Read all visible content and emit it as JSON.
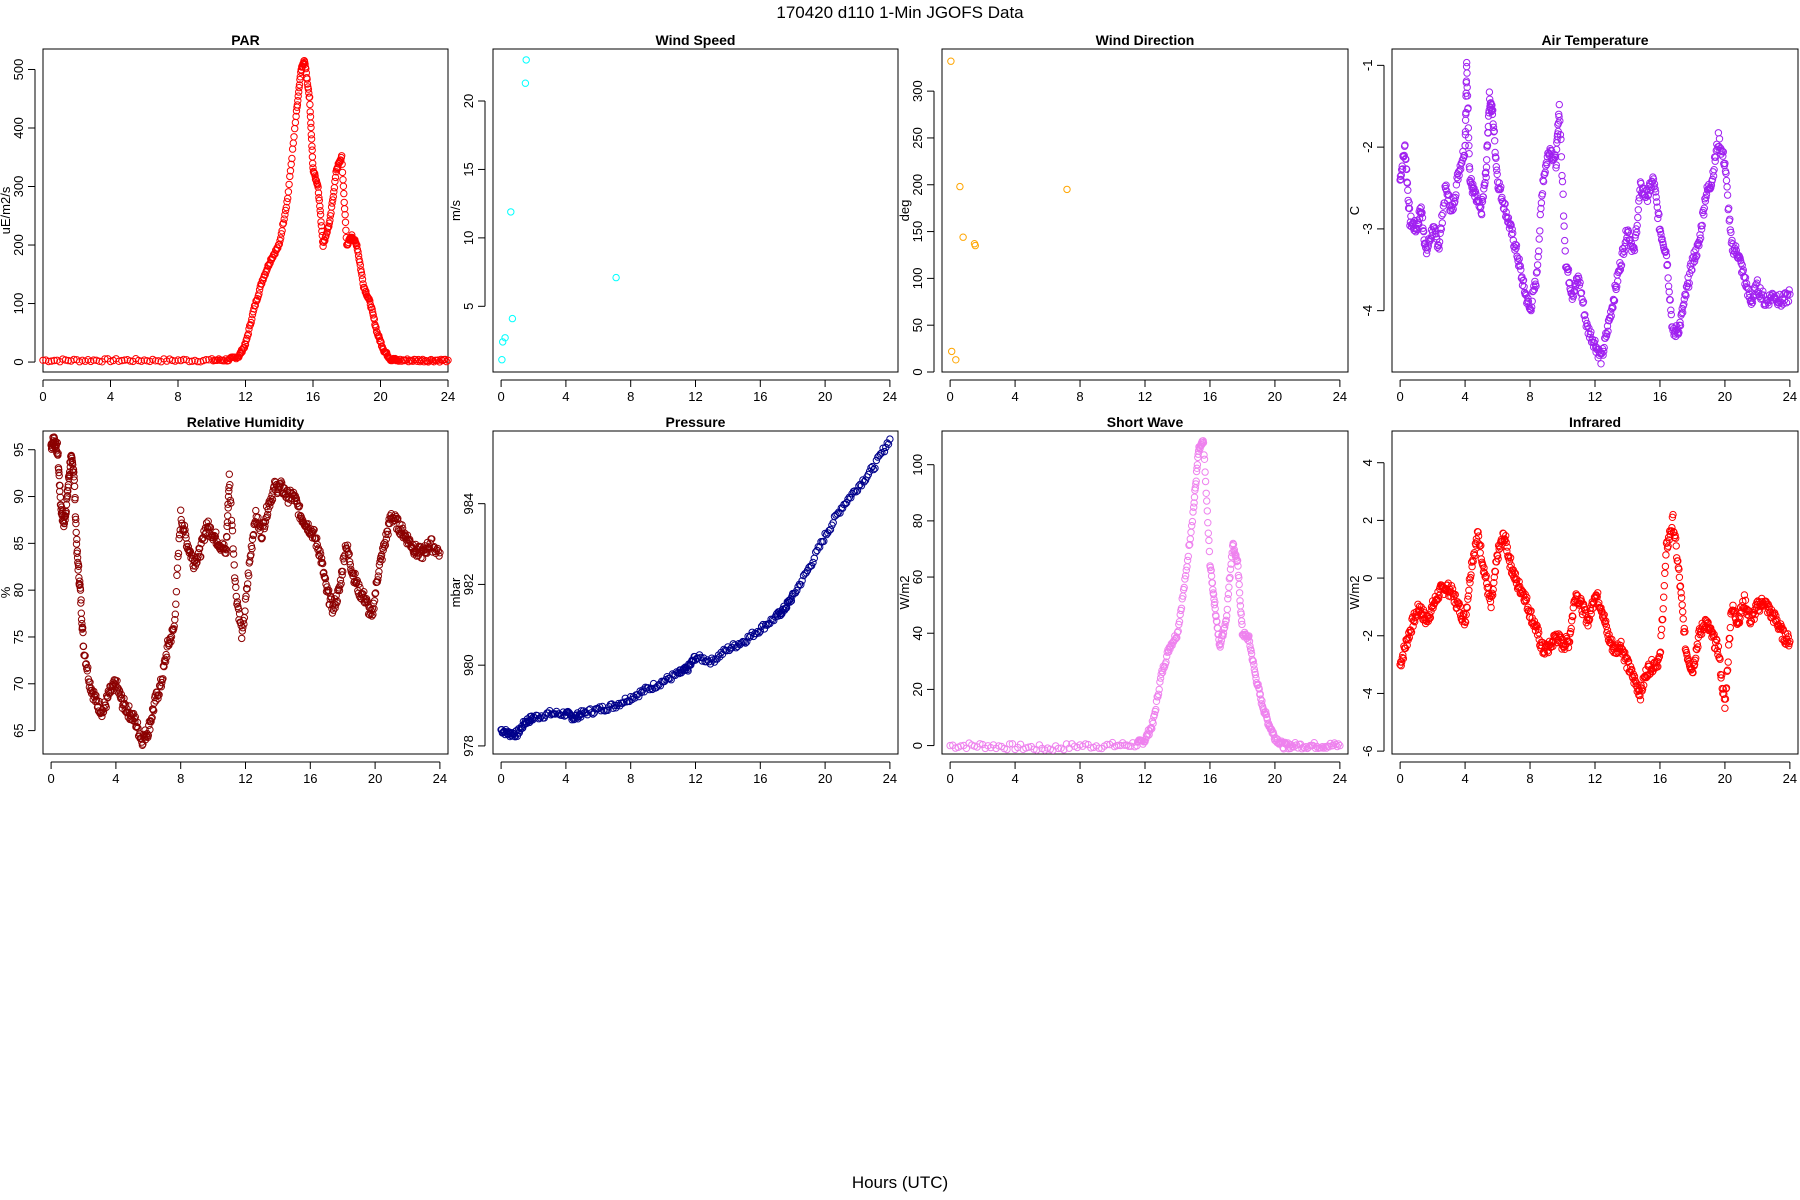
{
  "figure": {
    "title": "170420   d110   1-Min  JGOFS Data",
    "xlabel": "Hours (UTC)"
  },
  "chart_data": [
    {
      "type": "scatter",
      "title": "PAR",
      "ylabel": "uE/m2/s",
      "color": "#ff0000",
      "xlim": [
        0,
        24
      ],
      "ylim": [
        -17,
        535
      ],
      "xticks": [
        0,
        4,
        8,
        12,
        16,
        20,
        24
      ],
      "yticks": [
        0,
        100,
        200,
        300,
        400,
        500
      ],
      "x": [
        0,
        2,
        4,
        6,
        8,
        10,
        11,
        11.6,
        12,
        12.5,
        13,
        13.5,
        14,
        14.5,
        15,
        15.3,
        15.5,
        15.8,
        16,
        16.3,
        16.6,
        17,
        17.4,
        17.7,
        18,
        18.3,
        18.6,
        19,
        19.4,
        19.8,
        20.2,
        20.6,
        21,
        22,
        23,
        24
      ],
      "y": [
        3,
        3,
        3,
        3,
        3,
        3,
        4,
        10,
        30,
        90,
        140,
        175,
        200,
        280,
        420,
        500,
        515,
        450,
        330,
        300,
        200,
        240,
        330,
        350,
        200,
        215,
        200,
        130,
        100,
        50,
        20,
        5,
        3,
        3,
        3,
        3
      ]
    },
    {
      "type": "scatter",
      "title": "Wind Speed",
      "ylabel": "m/s",
      "color": "#00ffff",
      "xlim": [
        -0.5,
        24.5
      ],
      "ylim": [
        0.2,
        23.8
      ],
      "xticks": [
        0,
        4,
        8,
        12,
        16,
        20,
        24
      ],
      "yticks": [
        5,
        10,
        15,
        20
      ],
      "x": [
        0.05,
        0.1,
        0.25,
        0.6,
        0.7,
        1.5,
        1.55,
        7.1
      ],
      "y": [
        1.1,
        2.4,
        2.7,
        11.9,
        4.1,
        21.3,
        23.0,
        7.1
      ]
    },
    {
      "type": "scatter",
      "title": "Wind Direction",
      "ylabel": "deg",
      "color": "#ffa500",
      "xlim": [
        -0.5,
        24.5
      ],
      "ylim": [
        0,
        345
      ],
      "xticks": [
        0,
        4,
        8,
        12,
        16,
        20,
        24
      ],
      "yticks": [
        0,
        50,
        100,
        150,
        200,
        250,
        300
      ],
      "x": [
        0.05,
        0.1,
        0.35,
        0.6,
        0.8,
        1.5,
        1.55,
        7.2
      ],
      "y": [
        332,
        22,
        13,
        198,
        144,
        137,
        135,
        195
      ]
    },
    {
      "type": "scatter",
      "title": "Air Temperature",
      "ylabel": "C",
      "color": "#a020f0",
      "xlim": [
        -0.5,
        24.5
      ],
      "ylim": [
        -4.75,
        -0.8
      ],
      "xticks": [
        0,
        4,
        8,
        12,
        16,
        20,
        24
      ],
      "yticks": [
        -4,
        -3,
        -2,
        -1
      ],
      "x": [
        0,
        0.3,
        0.6,
        1,
        1.3,
        1.6,
        2,
        2.4,
        2.8,
        3.2,
        3.6,
        4,
        4.1,
        4.3,
        4.6,
        5,
        5.3,
        5.5,
        5.7,
        6,
        6.4,
        6.8,
        7.2,
        7.6,
        8,
        8.4,
        8.8,
        9.2,
        9.6,
        9.8,
        10.2,
        10.6,
        11,
        11.5,
        12,
        12.4,
        12.8,
        13.2,
        13.6,
        14,
        14.4,
        14.8,
        15.2,
        15.6,
        16,
        16.4,
        16.8,
        17.2,
        17.6,
        18,
        18.4,
        18.8,
        19.2,
        19.6,
        20,
        20.4,
        20.8,
        21.2,
        21.6,
        22,
        22.5,
        23,
        23.5,
        24
      ],
      "y": [
        -2.4,
        -2.0,
        -2.9,
        -3.0,
        -2.75,
        -3.3,
        -3.0,
        -3.2,
        -2.5,
        -2.8,
        -2.3,
        -2.0,
        -1.0,
        -2.4,
        -2.6,
        -2.8,
        -2.3,
        -1.4,
        -1.6,
        -2.4,
        -2.7,
        -3.0,
        -3.3,
        -3.7,
        -4.0,
        -3.6,
        -2.4,
        -2.0,
        -2.2,
        -1.5,
        -3.4,
        -3.8,
        -3.6,
        -4.2,
        -4.4,
        -4.6,
        -4.2,
        -3.8,
        -3.4,
        -3.0,
        -3.3,
        -2.5,
        -2.6,
        -2.4,
        -3.0,
        -3.3,
        -4.3,
        -4.2,
        -3.8,
        -3.4,
        -3.2,
        -2.6,
        -2.4,
        -1.9,
        -2.2,
        -3.2,
        -3.3,
        -3.6,
        -3.9,
        -3.7,
        -3.9,
        -3.8,
        -3.9,
        -3.8
      ]
    },
    {
      "type": "scatter",
      "title": "Relative Humidity",
      "ylabel": "%",
      "color": "#8b0000",
      "xlim": [
        -0.5,
        24.5
      ],
      "ylim": [
        62.5,
        97
      ],
      "xticks": [
        0,
        4,
        8,
        12,
        16,
        20,
        24
      ],
      "yticks": [
        65,
        70,
        75,
        80,
        85,
        90,
        95
      ],
      "x": [
        0,
        0.2,
        0.4,
        0.6,
        0.8,
        1,
        1.2,
        1.4,
        1.6,
        1.8,
        2,
        2.4,
        2.8,
        3.2,
        3.6,
        4,
        4.4,
        4.8,
        5.2,
        5.6,
        6,
        6.4,
        6.8,
        7.2,
        7.6,
        8,
        8.4,
        8.8,
        9.2,
        9.6,
        10,
        10.4,
        10.8,
        11,
        11.4,
        11.8,
        12.2,
        12.6,
        13,
        13.4,
        13.8,
        14.2,
        14.6,
        15,
        15.4,
        15.8,
        16.2,
        16.6,
        17,
        17.4,
        17.8,
        18.2,
        18.6,
        19,
        19.4,
        19.8,
        20.2,
        20.6,
        21,
        21.4,
        21.8,
        22.2,
        22.6,
        23,
        23.4,
        24
      ],
      "y": [
        95.5,
        96,
        95,
        89,
        87,
        90,
        94,
        93,
        84,
        80,
        74,
        70,
        68,
        67,
        69,
        70,
        68,
        67,
        66,
        64,
        65,
        68,
        70,
        74,
        76,
        88,
        85,
        83,
        84,
        87,
        86,
        85,
        84,
        92,
        80,
        75,
        82,
        88,
        86,
        89,
        91,
        91,
        90,
        90,
        88,
        87,
        86,
        84,
        80,
        78,
        80,
        85,
        82,
        80,
        79,
        77,
        82,
        85,
        88,
        87,
        86,
        85,
        84,
        84,
        85,
        84
      ]
    },
    {
      "type": "scatter",
      "title": "Pressure",
      "ylabel": "mbar",
      "color": "#00008b",
      "xlim": [
        -0.5,
        24.5
      ],
      "ylim": [
        977.8,
        985.8
      ],
      "xticks": [
        0,
        4,
        8,
        12,
        16,
        20,
        24
      ],
      "yticks": [
        978,
        980,
        982,
        984
      ],
      "x": [
        0,
        0.5,
        1,
        1.5,
        2,
        3,
        4,
        4.5,
        5,
        6,
        7,
        8,
        9,
        10,
        11,
        11.5,
        12,
        13,
        14,
        15,
        16,
        17,
        17.5,
        18,
        19,
        20,
        21,
        22,
        23,
        24
      ],
      "y": [
        978.4,
        978.3,
        978.3,
        978.6,
        978.7,
        978.8,
        978.8,
        978.7,
        978.8,
        978.9,
        979.0,
        979.2,
        979.4,
        979.6,
        979.8,
        979.9,
        980.2,
        980.1,
        980.4,
        980.6,
        980.9,
        981.2,
        981.4,
        981.7,
        982.4,
        983.2,
        983.9,
        984.4,
        984.9,
        985.6
      ]
    },
    {
      "type": "scatter",
      "title": "Short Wave",
      "ylabel": "W/m2",
      "color": "#ee82ee",
      "xlim": [
        -0.5,
        24.5
      ],
      "ylim": [
        -3,
        112
      ],
      "xticks": [
        0,
        4,
        8,
        12,
        16,
        20,
        24
      ],
      "yticks": [
        0,
        20,
        40,
        60,
        80,
        100
      ],
      "x": [
        0,
        2,
        4,
        6,
        8,
        10,
        11.5,
        12,
        12.5,
        13,
        13.5,
        14,
        14.5,
        15,
        15.3,
        15.6,
        16,
        16.3,
        16.6,
        17,
        17.4,
        17.7,
        18,
        18.4,
        18.8,
        19.2,
        19.6,
        20,
        20.5,
        21,
        22,
        23,
        24
      ],
      "y": [
        0,
        0,
        -0.5,
        -1,
        0,
        0,
        0.5,
        2,
        8,
        25,
        35,
        40,
        60,
        85,
        105,
        108,
        65,
        50,
        35,
        45,
        72,
        65,
        40,
        38,
        25,
        15,
        8,
        3,
        0,
        0,
        0,
        0,
        0
      ]
    },
    {
      "type": "scatter",
      "title": "Infrared",
      "ylabel": "W/m2",
      "color": "#ff0000",
      "xlim": [
        -0.5,
        24.5
      ],
      "ylim": [
        -6.1,
        5.1
      ],
      "xticks": [
        0,
        4,
        8,
        12,
        16,
        20,
        24
      ],
      "yticks": [
        -6,
        -4,
        -2,
        0,
        2,
        4
      ],
      "x": [
        0,
        0.4,
        0.8,
        1.2,
        1.6,
        2,
        2.4,
        2.8,
        3.2,
        3.6,
        4,
        4.4,
        4.8,
        5.2,
        5.6,
        6,
        6.4,
        6.8,
        7.2,
        7.6,
        8,
        8.4,
        8.8,
        9.2,
        9.6,
        10,
        10.4,
        10.8,
        11.2,
        11.6,
        12,
        12.4,
        12.8,
        13.2,
        13.6,
        14,
        14.4,
        14.8,
        15.2,
        15.6,
        16,
        16.4,
        16.8,
        17.2,
        17.6,
        18,
        18.4,
        18.8,
        19.2,
        19.6,
        20,
        20.4,
        20.8,
        21.2,
        21.6,
        22,
        22.4,
        22.8,
        23.2,
        23.6,
        24
      ],
      "y": [
        -3,
        -2.2,
        -1.5,
        -1.0,
        -1.5,
        -1.0,
        -0.5,
        -0.3,
        -0.5,
        -1.0,
        -1.5,
        0.5,
        1.5,
        0.2,
        -1.0,
        0.8,
        1.5,
        0.5,
        -0.2,
        -0.5,
        -1.2,
        -1.8,
        -2.5,
        -2.4,
        -2.0,
        -2.3,
        -2.2,
        -0.5,
        -1.0,
        -1.5,
        -0.5,
        -1.0,
        -2.0,
        -2.5,
        -2.3,
        -3.0,
        -3.5,
        -4.0,
        -3.2,
        -3.0,
        -2.8,
        1.0,
        2.0,
        0.0,
        -2.5,
        -3.2,
        -2.0,
        -1.5,
        -2.0,
        -2.5,
        -4.5,
        -1.0,
        -1.5,
        -0.8,
        -1.5,
        -1.0,
        -0.8,
        -1.2,
        -1.5,
        -2.0,
        -2.2
      ]
    }
  ]
}
